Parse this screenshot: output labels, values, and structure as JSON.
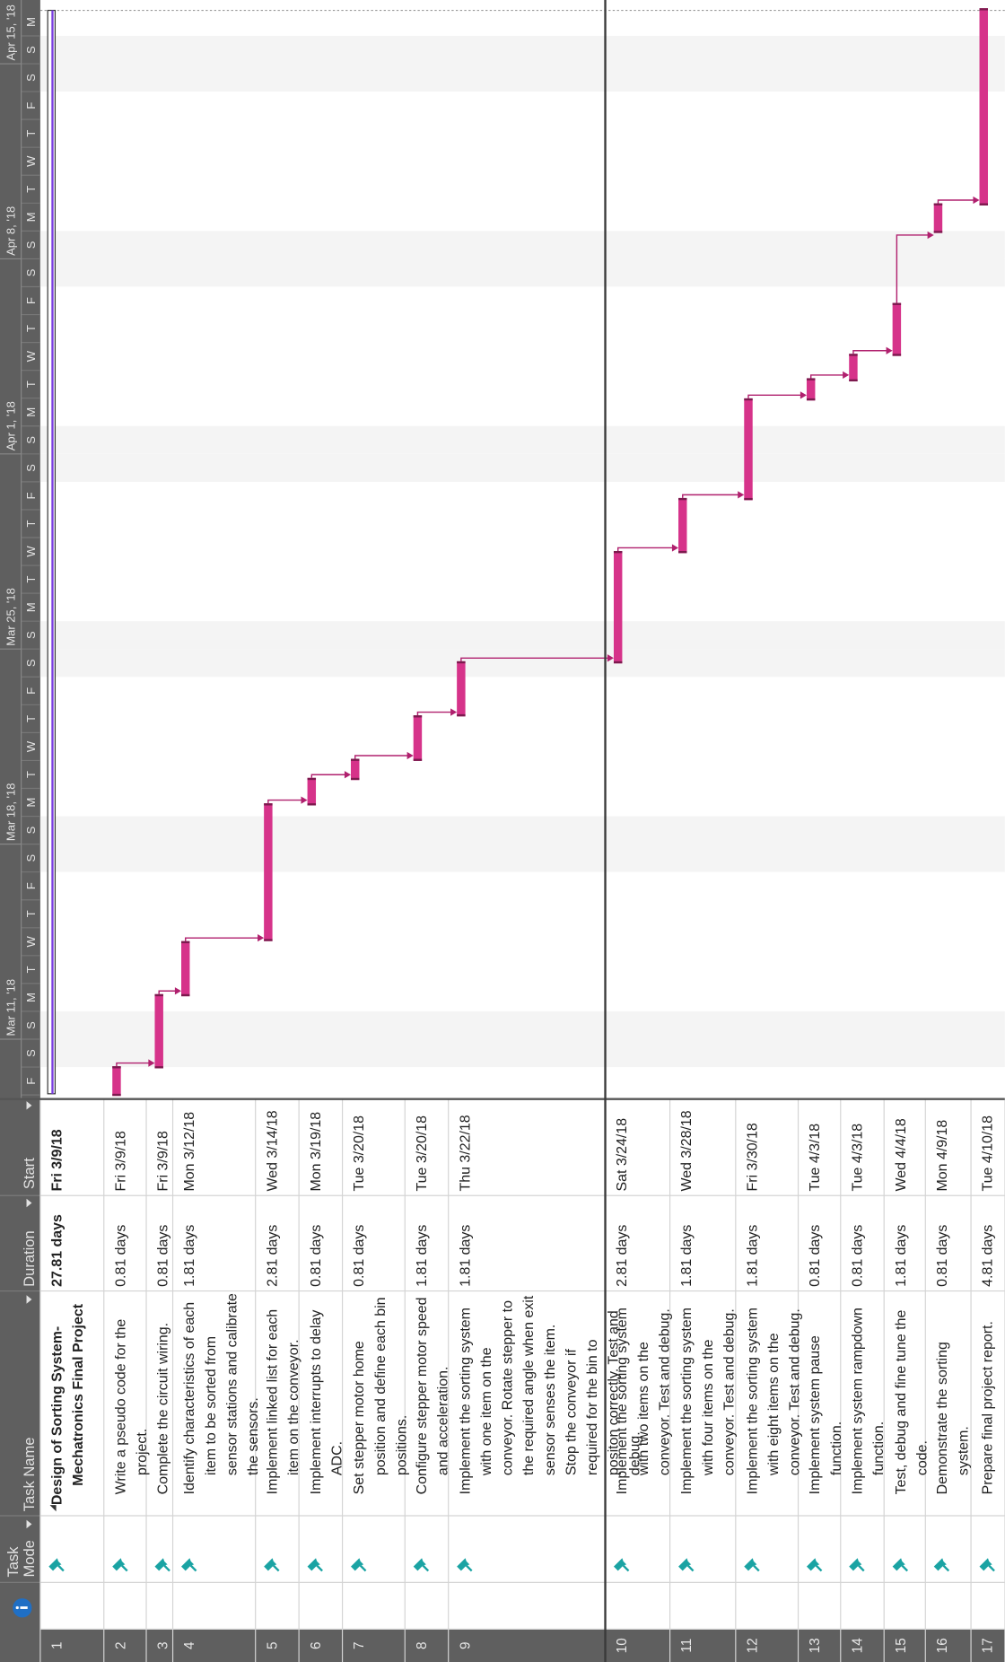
{
  "header": {
    "task_mode": "Task Mode",
    "task_name": "Task Name",
    "duration": "Duration",
    "start": "Start"
  },
  "timescale": {
    "weeks": [
      "Mar 11, '18",
      "Mar 18, '18",
      "Mar 25, '18",
      "Apr 1, '18",
      "Apr 8, '18",
      "Apr 15, '18"
    ],
    "days": [
      "F",
      "S",
      "S",
      "M",
      "T",
      "W",
      "T",
      "F",
      "S",
      "S",
      "M",
      "T",
      "W",
      "T",
      "F",
      "S",
      "S",
      "M",
      "T",
      "W",
      "T",
      "F",
      "S",
      "S",
      "M",
      "T",
      "W",
      "T",
      "F",
      "S",
      "S",
      "M",
      "T",
      "W",
      "T",
      "F",
      "S",
      "S",
      "M"
    ]
  },
  "tasks": [
    {
      "id": 1,
      "name": "Design of Sorting System-Mechatronics Final Project",
      "duration": "27.81 days",
      "start": "Fri 3/9/18"
    },
    {
      "id": 2,
      "name": "Write a pseudo code for the project.",
      "duration": "0.81 days",
      "start": "Fri 3/9/18"
    },
    {
      "id": 3,
      "name": "Complete the circuit wiring.",
      "duration": "0.81 days",
      "start": "Fri 3/9/18"
    },
    {
      "id": 4,
      "name": "Identify characteristics of each item to be sorted from sensor stations and calibrate the sensors.",
      "duration": "1.81 days",
      "start": "Mon 3/12/18"
    },
    {
      "id": 5,
      "name": "Implement linked list for each item on the conveyor.",
      "duration": "2.81 days",
      "start": "Wed 3/14/18"
    },
    {
      "id": 6,
      "name": "Implement interrupts to delay ADC.",
      "duration": "0.81 days",
      "start": "Mon 3/19/18"
    },
    {
      "id": 7,
      "name": "Set stepper motor home position and define each bin positions.",
      "duration": "0.81 days",
      "start": "Tue 3/20/18"
    },
    {
      "id": 8,
      "name": "Configure stepper motor speed and acceleration.",
      "duration": "1.81 days",
      "start": "Tue 3/20/18"
    },
    {
      "id": 9,
      "name": "Implement the sorting system with one item on the conveyor. Rotate stepper to the required angle when exit sensor senses the item. Stop the conveyor if required for the bin to positon correctly. Test and debug.",
      "duration": "1.81 days",
      "start": "Thu 3/22/18"
    },
    {
      "id": 10,
      "name": "Implement the sorting system with two items on the conveyor. Test and debug.",
      "duration": "2.81 days",
      "start": "Sat 3/24/18"
    },
    {
      "id": 11,
      "name": "Implement the sorting system with four items on the conveyor. Test and debug.",
      "duration": "1.81 days",
      "start": "Wed 3/28/18"
    },
    {
      "id": 12,
      "name": "Implement the sorting system with eight items on the conveyor. Test and debug.",
      "duration": "1.81 days",
      "start": "Fri 3/30/18"
    },
    {
      "id": 13,
      "name": "Implement system pause function.",
      "duration": "0.81 days",
      "start": "Tue 4/3/18"
    },
    {
      "id": 14,
      "name": "Implement system rampdown function.",
      "duration": "0.81 days",
      "start": "Tue 4/3/18"
    },
    {
      "id": 15,
      "name": "Test, debug and fine tune the code.",
      "duration": "1.81 days",
      "start": "Wed 4/4/18"
    },
    {
      "id": 16,
      "name": "Demonstrate the sorting system.",
      "duration": "0.81 days",
      "start": "Mon 4/9/18"
    },
    {
      "id": 17,
      "name": "Prepare final project report.",
      "duration": "4.81 days",
      "start": "Tue 4/10/18"
    }
  ]
}
